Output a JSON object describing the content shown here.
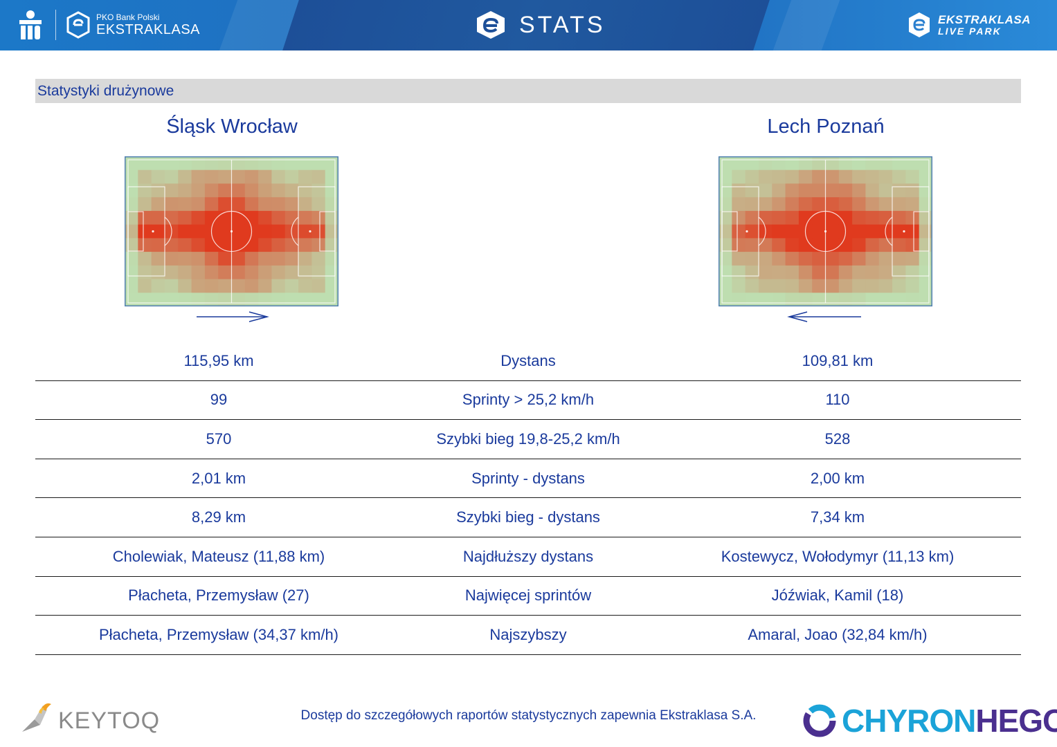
{
  "header": {
    "left_logo_small": "PKO Bank Polski",
    "left_logo_big": "EKSTRAKLASA",
    "title": "STATS",
    "right_logo_line1": "EKSTRAKLASA",
    "right_logo_line2": "LIVE PARK"
  },
  "section": {
    "title": "Statystyki drużynowe"
  },
  "teams": {
    "home": "Śląsk Wrocław",
    "away": "Lech Poznań"
  },
  "stats": [
    {
      "home": "115,95 km",
      "label": "Dystans",
      "away": "109,81 km"
    },
    {
      "home": "99",
      "label": "Sprinty > 25,2 km/h",
      "away": "110"
    },
    {
      "home": "570",
      "label": "Szybki bieg 19,8-25,2 km/h",
      "away": "528"
    },
    {
      "home": "2,01 km",
      "label": "Sprinty - dystans",
      "away": "2,00 km"
    },
    {
      "home": "8,29 km",
      "label": "Szybki bieg - dystans",
      "away": "7,34 km"
    },
    {
      "home": "Cholewiak, Mateusz (11,88 km)",
      "label": "Najdłuższy dystans",
      "away": "Kostewycz, Wołodymyr (11,13 km)"
    },
    {
      "home": "Płacheta, Przemysław (27)",
      "label": "Najwięcej sprintów",
      "away": "Jóźwiak, Kamil (18)"
    },
    {
      "home": "Płacheta, Przemysław (34,37 km/h)",
      "label": "Najszybszy",
      "away": "Amaral, Joao (32,84 km/h)"
    }
  ],
  "footer": {
    "note": "Dostęp do szczegółowych raportów statystycznych zapewnia Ekstraklasa S.A.",
    "left_brand": "KEYTOQ",
    "right_brand_a": "CHYRON",
    "right_brand_b": "HEGO"
  },
  "colors": {
    "header_blue": "#1c6fc2",
    "text_blue": "#1a3a9c",
    "section_grey": "#d9d9d9",
    "heat_high": "#e03a1e",
    "heat_low": "#b9dcae"
  },
  "icons": {
    "pko": "pko-logo-icon",
    "ekstraklasa": "ekstraklasa-badge-icon",
    "stats": "stats-e-icon",
    "direction_right": "arrow-right-icon",
    "direction_left": "arrow-left-icon"
  }
}
